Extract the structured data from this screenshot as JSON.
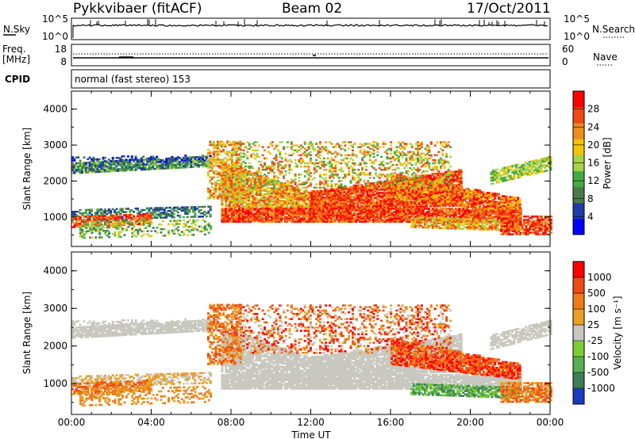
{
  "header": {
    "station": "Pykkvibaer (fitACF)",
    "beam": "Beam 02",
    "date": "17/Oct/2011"
  },
  "panels": {
    "nsky_label": "N.Sky",
    "nsky_ticks": [
      "10^5",
      "10^0"
    ],
    "nsearch_label": "N.Search",
    "nsearch_ticks": [
      "10^5",
      "10^0"
    ],
    "freq_label_1": "Freq.",
    "freq_label_2": "[MHz]",
    "freq_ticks": [
      "18",
      "8"
    ],
    "nave_label": "Nave",
    "nave_ticks": [
      "60",
      "0"
    ],
    "cpid_label": "CPID",
    "cpid_text": "normal (fast stereo) 153"
  },
  "chart_data": [
    {
      "type": "heatmap",
      "name": "power",
      "ylabel": "Slant Range [km]",
      "yticks": [
        "4000",
        "3000",
        "2000",
        "1000"
      ],
      "ylim": [
        180,
        4500
      ],
      "xlim": [
        0,
        24
      ],
      "colorbar": {
        "title": "Power [dB]",
        "ticks": [
          "28",
          "24",
          "20",
          "16",
          "12",
          "8",
          "4"
        ],
        "colors": [
          "#0000ff",
          "#1e3ca8",
          "#4a7a4a",
          "#44aa44",
          "#a6d24a",
          "#f2c40a",
          "#f08c1c",
          "#ee4a14",
          "#ff0000"
        ],
        "range": [
          0,
          32
        ]
      }
    },
    {
      "type": "heatmap",
      "name": "velocity",
      "ylabel": "Slant Range [km]",
      "yticks": [
        "4000",
        "3000",
        "2000",
        "1000"
      ],
      "ylim": [
        180,
        4500
      ],
      "xlim": [
        0,
        24
      ],
      "xticks": [
        "00:00",
        "04:00",
        "08:00",
        "12:00",
        "16:00",
        "20:00",
        "00:00"
      ],
      "xlabel": "Time UT",
      "colorbar": {
        "title": "Velocity [m s⁻¹]",
        "ticks": [
          "1000",
          "500",
          "100",
          "25",
          "-25",
          "-100",
          "-500",
          "-1000"
        ],
        "colors": [
          "#1c3cbe",
          "#3e7e58",
          "#58ae52",
          "#7ece32",
          "#c8c8c0",
          "#e8a028",
          "#f07a18",
          "#ee4a14",
          "#ff0000"
        ]
      }
    }
  ]
}
